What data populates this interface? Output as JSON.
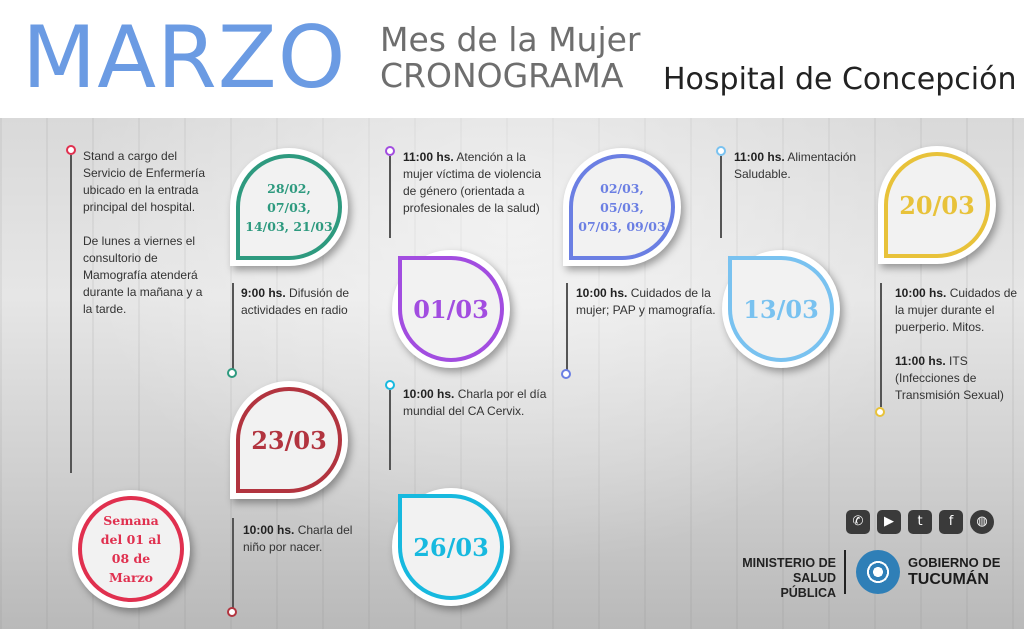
{
  "header": {
    "title": "MARZO",
    "subtitle_line1": "Mes de la Mujer",
    "subtitle_line2": "CRONOGRAMA",
    "hospital": "Hospital de Concepción"
  },
  "colors": {
    "title": "#6b9be3",
    "green": "#2e9a7f",
    "purple": "#a24de0",
    "red": "#b2343f",
    "cyan": "#17b9df",
    "blue": "#6b7fe3",
    "lightblue": "#79c2f0",
    "yellow": "#e8c23a",
    "pink": "#e0304f"
  },
  "intro": {
    "p1": "Stand a cargo del Servicio de Enfermería ubicado en la entrada principal del hospital.",
    "p2": "De lunes a viernes el consultorio de Mamografía atenderá durante la mañana y a la tarde."
  },
  "week": {
    "label": "Semana del 01 al 08 de Marzo"
  },
  "events": {
    "radio": {
      "date": "28/02, 07/03, 14/03, 21/03",
      "time": "9:00 hs.",
      "desc": "Difusión de actividades en radio"
    },
    "violencia": {
      "date": "01/03",
      "time": "11:00 hs.",
      "desc": "Atención a la mujer víctima de violencia de género (orientada a profesionales de la salud)"
    },
    "pap": {
      "date": "02/03, 05/03, 07/03, 09/03",
      "time": "10:00 hs.",
      "desc": "Cuidados de la mujer; PAP y mamografía."
    },
    "alimentacion": {
      "date": "13/03",
      "time": "11:00 hs.",
      "desc": "Alimentación Saludable."
    },
    "puerperio": {
      "date": "20/03",
      "time": "10:00 hs.",
      "desc": "Cuidados de la mujer durante el puerperio. Mitos.",
      "time2": "11:00 hs.",
      "desc2": "ITS (Infecciones de Transmisión Sexual)"
    },
    "nino": {
      "date": "23/03",
      "time": "10:00 hs.",
      "desc": "Charla del niño por nacer."
    },
    "cervix": {
      "date": "26/03",
      "time": "10:00 hs.",
      "desc": "Charla por el día mundial del CA Cervix."
    }
  },
  "social": [
    {
      "icon": "phone-icon",
      "glyph": "✆"
    },
    {
      "icon": "youtube-icon",
      "glyph": "▶"
    },
    {
      "icon": "twitter-icon",
      "glyph": "t"
    },
    {
      "icon": "facebook-icon",
      "glyph": "f"
    },
    {
      "icon": "web-icon",
      "glyph": "◍"
    }
  ],
  "footer": {
    "ministerio_line1": "MINISTERIO DE",
    "ministerio_line2": "SALUD PÚBLICA",
    "gobierno_line1": "GOBIERNO DE",
    "gobierno_line2": "TUCUMÁN"
  }
}
